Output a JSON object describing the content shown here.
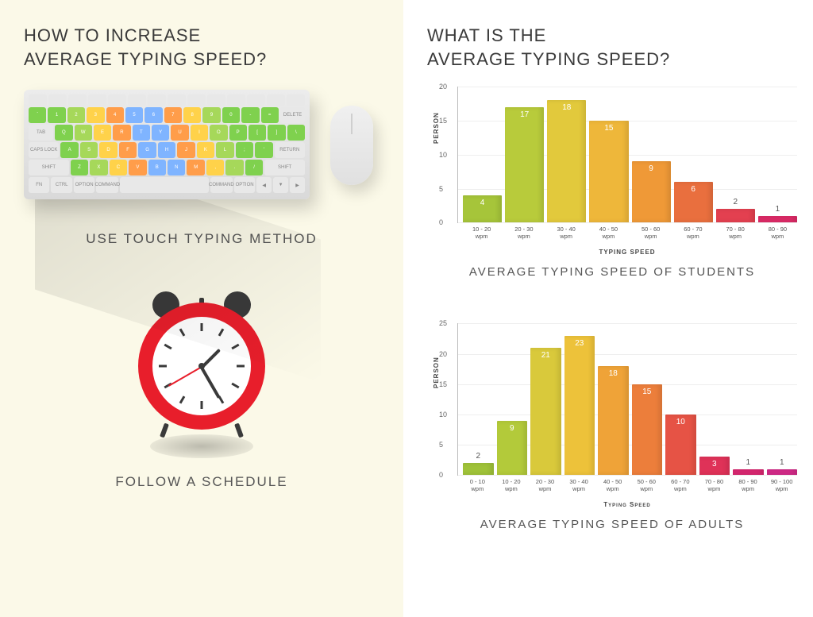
{
  "left": {
    "heading_l1": "HOW TO INCREASE",
    "heading_l2": "AVERAGE TYPING SPEED?",
    "tip1": "USE TOUCH TYPING METHOD",
    "tip2": "FOLLOW A SCHEDULE",
    "keyboard": {
      "base_color": "#e8e8e8",
      "row1": [
        {
          "l": "`",
          "c": "#7fd14e"
        },
        {
          "l": "1",
          "c": "#7fd14e"
        },
        {
          "l": "2",
          "c": "#a6d85a"
        },
        {
          "l": "3",
          "c": "#ffd24a"
        },
        {
          "l": "4",
          "c": "#ff9d4a"
        },
        {
          "l": "5",
          "c": "#7fb4ff"
        },
        {
          "l": "6",
          "c": "#7fb4ff"
        },
        {
          "l": "7",
          "c": "#ff9d4a"
        },
        {
          "l": "8",
          "c": "#ffd24a"
        },
        {
          "l": "9",
          "c": "#a6d85a"
        },
        {
          "l": "0",
          "c": "#7fd14e"
        },
        {
          "l": "-",
          "c": "#7fd14e"
        },
        {
          "l": "=",
          "c": "#7fd14e"
        }
      ],
      "row2": [
        {
          "l": "Q",
          "c": "#7fd14e"
        },
        {
          "l": "W",
          "c": "#a6d85a"
        },
        {
          "l": "E",
          "c": "#ffd24a"
        },
        {
          "l": "R",
          "c": "#ff9d4a"
        },
        {
          "l": "T",
          "c": "#7fb4ff"
        },
        {
          "l": "Y",
          "c": "#7fb4ff"
        },
        {
          "l": "U",
          "c": "#ff9d4a"
        },
        {
          "l": "I",
          "c": "#ffd24a"
        },
        {
          "l": "O",
          "c": "#a6d85a"
        },
        {
          "l": "P",
          "c": "#7fd14e"
        },
        {
          "l": "[",
          "c": "#7fd14e"
        },
        {
          "l": "]",
          "c": "#7fd14e"
        },
        {
          "l": "\\",
          "c": "#7fd14e"
        }
      ],
      "row3": [
        {
          "l": "A",
          "c": "#7fd14e"
        },
        {
          "l": "S",
          "c": "#a6d85a"
        },
        {
          "l": "D",
          "c": "#ffd24a"
        },
        {
          "l": "F",
          "c": "#ff9d4a"
        },
        {
          "l": "G",
          "c": "#7fb4ff"
        },
        {
          "l": "H",
          "c": "#7fb4ff"
        },
        {
          "l": "J",
          "c": "#ff9d4a"
        },
        {
          "l": "K",
          "c": "#ffd24a"
        },
        {
          "l": "L",
          "c": "#a6d85a"
        },
        {
          "l": ";",
          "c": "#7fd14e"
        },
        {
          "l": "'",
          "c": "#7fd14e"
        }
      ],
      "row4": [
        {
          "l": "Z",
          "c": "#7fd14e"
        },
        {
          "l": "X",
          "c": "#a6d85a"
        },
        {
          "l": "C",
          "c": "#ffd24a"
        },
        {
          "l": "V",
          "c": "#ff9d4a"
        },
        {
          "l": "B",
          "c": "#7fb4ff"
        },
        {
          "l": "N",
          "c": "#7fb4ff"
        },
        {
          "l": "M",
          "c": "#ff9d4a"
        },
        {
          "l": ",",
          "c": "#ffd24a"
        },
        {
          "l": ".",
          "c": "#a6d85a"
        },
        {
          "l": "/",
          "c": "#7fd14e"
        }
      ],
      "mods": {
        "tab": "tab",
        "caps": "caps lock",
        "shift": "shift",
        "return": "return",
        "delete": "delete",
        "ctrl": "ctrl",
        "option": "option",
        "command": "command"
      }
    },
    "clock": {
      "ring_color": "#e81e2b",
      "accent": "#3a3a3a"
    }
  },
  "right": {
    "heading_l1": "WHAT IS THE",
    "heading_l2": "AVERAGE TYPING SPEED?",
    "chart1": {
      "type": "bar",
      "caption": "AVERAGE TYPING SPEED OF STUDENTS",
      "ylabel": "PERSON",
      "xlabel": "TYPING SPEED",
      "ymax": 20,
      "ystep": 5,
      "categories": [
        "10 - 20 wpm",
        "20 - 30 wpm",
        "30 - 40 wpm",
        "40 - 50 wpm",
        "50 - 60 wpm",
        "60 - 70 wpm",
        "70 - 80 wpm",
        "80 - 90 wpm"
      ],
      "values": [
        4,
        17,
        18,
        15,
        9,
        6,
        2,
        1
      ],
      "colors": [
        "#a6c53a",
        "#b8cb3b",
        "#e2c93c",
        "#eeb73a",
        "#ef9937",
        "#e96f3e",
        "#e34050",
        "#dc2a66"
      ]
    },
    "chart2": {
      "type": "bar",
      "caption": "AVERAGE TYPING SPEED OF ADULTS",
      "ylabel": "PERSON",
      "xlabel": "Typing Speed",
      "ymax": 25,
      "ystep": 5,
      "categories": [
        "0 - 10 wpm",
        "10 - 20 wpm",
        "20 - 30 wpm",
        "30 - 40 wpm",
        "40 - 50 wpm",
        "50 - 60 wpm",
        "60 - 70 wpm",
        "70 - 80 wpm",
        "80 - 90 wpm",
        "90 - 100 wpm"
      ],
      "values": [
        2,
        9,
        21,
        23,
        18,
        15,
        10,
        3,
        1,
        1
      ],
      "colors": [
        "#9fc239",
        "#b3ca3a",
        "#d9c93b",
        "#edc23a",
        "#efa338",
        "#ec7e3b",
        "#e65345",
        "#df3258",
        "#d82770",
        "#d22a88"
      ]
    }
  }
}
